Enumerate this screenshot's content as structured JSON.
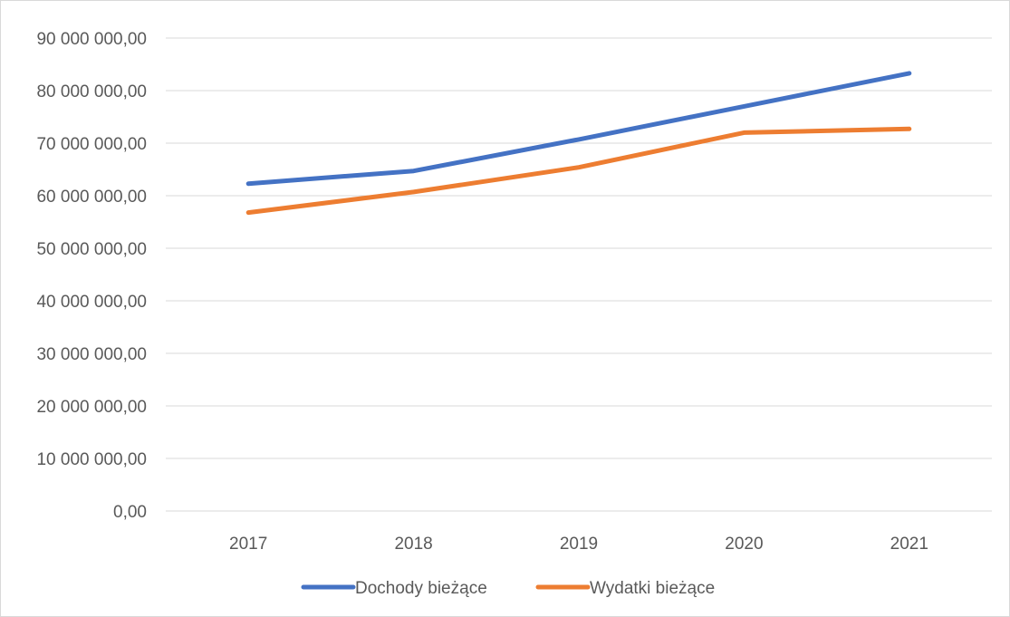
{
  "chart_data": {
    "type": "line",
    "title": "",
    "xlabel": "",
    "ylabel": "",
    "categories": [
      "2017",
      "2018",
      "2019",
      "2020",
      "2021"
    ],
    "ylim": [
      0,
      90000000
    ],
    "ytick_values": [
      0,
      10000000,
      20000000,
      30000000,
      40000000,
      50000000,
      60000000,
      70000000,
      80000000,
      90000000
    ],
    "ytick_labels": [
      "0,00",
      "10 000 000,00",
      "20 000 000,00",
      "30 000 000,00",
      "40 000 000,00",
      "50 000 000,00",
      "60 000 000,00",
      "70 000 000,00",
      "80 000 000,00",
      "90 000 000,00"
    ],
    "grid": true,
    "legend_position": "bottom",
    "series": [
      {
        "name": "Dochody bieżące",
        "color": "#4472C4",
        "values": [
          62300000,
          64700000,
          70700000,
          77000000,
          83300000
        ]
      },
      {
        "name": "Wydatki bieżące",
        "color": "#ED7D31",
        "values": [
          56800000,
          60700000,
          65400000,
          72000000,
          72700000
        ]
      }
    ]
  }
}
